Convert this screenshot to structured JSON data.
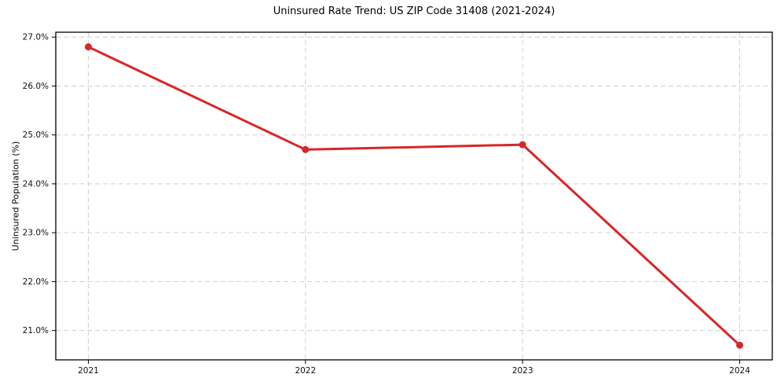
{
  "chart_data": {
    "type": "line",
    "title": "Uninsured Rate Trend: US ZIP Code 31408 (2021-2024)",
    "xlabel": "",
    "ylabel": "Uninsured Population (%)",
    "x": [
      2021,
      2022,
      2023,
      2024
    ],
    "x_tick_labels": [
      "2021",
      "2022",
      "2023",
      "2024"
    ],
    "series": [
      {
        "name": "uninsured-rate",
        "values": [
          26.8,
          24.7,
          24.8,
          20.7
        ]
      }
    ],
    "y_ticks": [
      21.0,
      22.0,
      23.0,
      24.0,
      25.0,
      26.0,
      27.0
    ],
    "y_tick_labels": [
      "21.0%",
      "22.0%",
      "23.0%",
      "24.0%",
      "25.0%",
      "26.0%",
      "27.0%"
    ],
    "ylim": [
      20.4,
      27.1
    ],
    "x_margin_fraction": 0.05,
    "grid": true,
    "grid_style": "dashed",
    "legend": "none",
    "colors": {
      "line": "#d62728",
      "marker": "#d62728",
      "grid": "#cfcfcf",
      "frame": "#000000",
      "tick": "#000000",
      "background": "#ffffff"
    },
    "marker": "circle",
    "marker_radius": 4.5,
    "line_width": 3
  }
}
